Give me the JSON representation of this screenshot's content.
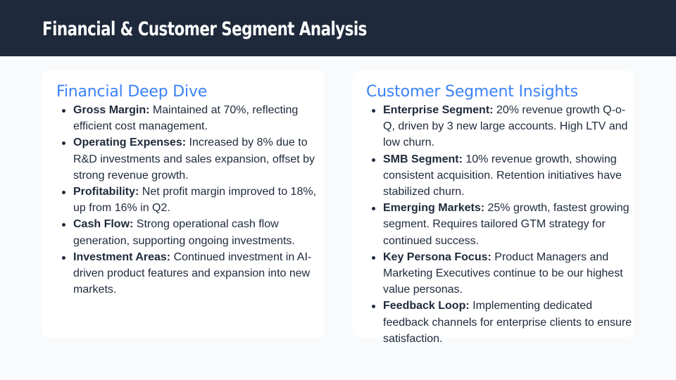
{
  "header": {
    "title": "Financial & Customer Segment Analysis"
  },
  "colors": {
    "header_bg": "#1e293b",
    "accent": "#3b82f6",
    "page_bg": "#f8fafc",
    "card_bg": "#ffffff",
    "text": "#1e293b"
  },
  "financial": {
    "heading": "Financial Deep Dive",
    "items": [
      {
        "label": "Gross Margin:",
        "text": " Maintained at 70%, reflecting efficient cost management."
      },
      {
        "label": "Operating Expenses:",
        "text": " Increased by 8% due to R&D investments and sales expansion, offset by strong revenue growth."
      },
      {
        "label": "Profitability:",
        "text": " Net profit margin improved to 18%, up from 16% in Q2."
      },
      {
        "label": "Cash Flow:",
        "text": " Strong operational cash flow generation, supporting ongoing investments."
      },
      {
        "label": "Investment Areas:",
        "text": " Continued investment in AI-driven product features and expansion into new markets."
      }
    ]
  },
  "customer": {
    "heading": "Customer Segment Insights",
    "items": [
      {
        "label": "Enterprise Segment:",
        "text": " 20% revenue growth Q-o-Q, driven by 3 new large accounts. High LTV and low churn."
      },
      {
        "label": "SMB Segment:",
        "text": " 10% revenue growth, showing consistent acquisition. Retention initiatives have stabilized churn."
      },
      {
        "label": "Emerging Markets:",
        "text": " 25% growth, fastest growing segment. Requires tailored GTM strategy for continued success."
      },
      {
        "label": "Key Persona Focus:",
        "text": " Product Managers and Marketing Executives continue to be our highest value personas."
      },
      {
        "label": "Feedback Loop:",
        "text": " Implementing dedicated feedback channels for enterprise clients to ensure satisfaction."
      }
    ]
  }
}
